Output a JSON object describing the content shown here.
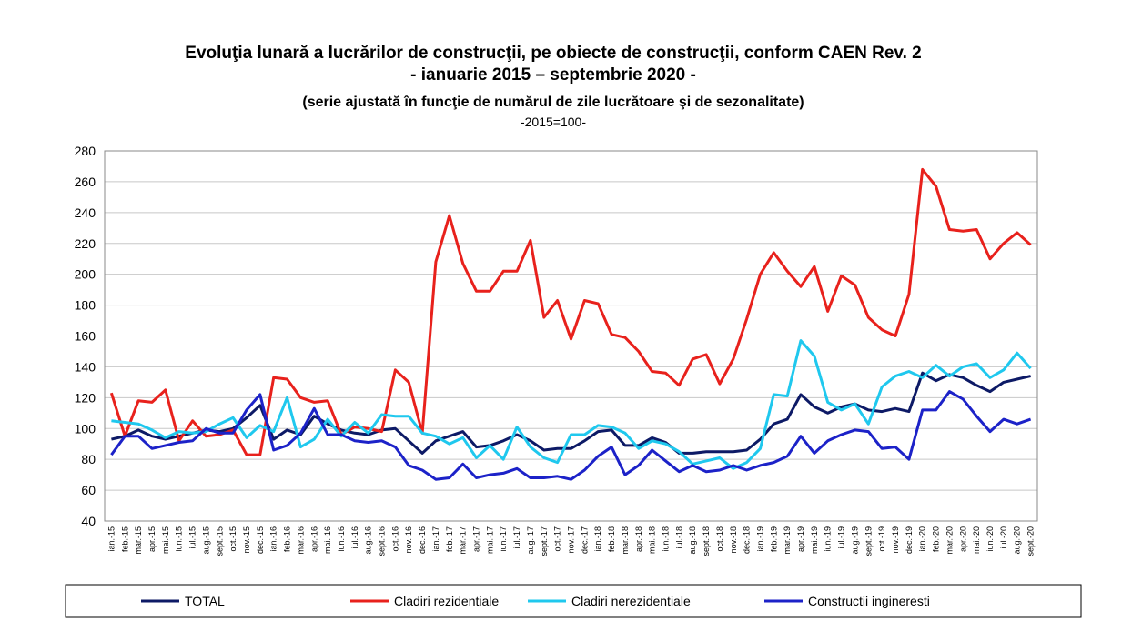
{
  "chart_data": {
    "type": "line",
    "title": "Evoluţia lunară a lucrărilor de construcţii, pe obiecte de construcţii, conform CAEN Rev. 2",
    "subtitle": "- ianuarie 2015 – septembrie 2020 -",
    "note": "(serie ajustată în funcţie de numărul de zile lucrătoare şi de sezonalitate)",
    "base": "-2015=100-",
    "categories": [
      "ian.-15",
      "feb.-15",
      "mar.-15",
      "apr.-15",
      "mai.-15",
      "iun.-15",
      "iul.-15",
      "aug.-15",
      "sept.-15",
      "oct.-15",
      "nov.-15",
      "dec.-15",
      "ian.-16",
      "feb.-16",
      "mar.-16",
      "apr.-16",
      "mai.-16",
      "iun.-16",
      "iul.-16",
      "aug.-16",
      "sept.-16",
      "oct.-16",
      "nov.-16",
      "dec.-16",
      "ian.-17",
      "feb.-17",
      "mar.-17",
      "apr.-17",
      "mai.-17",
      "iun.-17",
      "iul.-17",
      "aug.-17",
      "sept.-17",
      "oct.-17",
      "nov.-17",
      "dec.-17",
      "ian.-18",
      "feb.-18",
      "mar.-18",
      "apr.-18",
      "mai.-18",
      "iun.-18",
      "iul.-18",
      "aug.-18",
      "sept.-18",
      "oct.-18",
      "nov.-18",
      "dec.-18",
      "ian.-19",
      "feb.-19",
      "mar.-19",
      "apr.-19",
      "mai.-19",
      "iun.-19",
      "iul.-19",
      "aug.-19",
      "sept.-19",
      "oct.-19",
      "nov.-19",
      "dec.-19",
      "ian.-20",
      "feb.-20",
      "mar.-20",
      "apr.-20",
      "mai.-20",
      "iun.-20",
      "iul.-20",
      "aug.-20",
      "sept.-20"
    ],
    "series": [
      {
        "name": "TOTAL",
        "color": "#0d1a66",
        "values": [
          93,
          95,
          99,
          95,
          93,
          95,
          97,
          99,
          98,
          100,
          107,
          115,
          93,
          99,
          96,
          108,
          103,
          99,
          97,
          96,
          99,
          100,
          92,
          84,
          92,
          95,
          98,
          88,
          89,
          92,
          96,
          92,
          86,
          87,
          87,
          92,
          98,
          99,
          89,
          89,
          94,
          91,
          84,
          84,
          85,
          85,
          85,
          86,
          93,
          103,
          106,
          122,
          114,
          110,
          114,
          116,
          112,
          111,
          113,
          111,
          136,
          131,
          135,
          133,
          128,
          124,
          130,
          132,
          134
        ]
      },
      {
        "name": "Cladiri rezidentiale",
        "color": "#e8211c",
        "values": [
          123,
          95,
          118,
          117,
          125,
          92,
          105,
          95,
          96,
          99,
          83,
          83,
          133,
          132,
          120,
          117,
          118,
          96,
          101,
          100,
          98,
          138,
          130,
          97,
          208,
          238,
          207,
          189,
          189,
          202,
          202,
          222,
          172,
          183,
          158,
          183,
          181,
          161,
          159,
          150,
          137,
          136,
          128,
          145,
          148,
          129,
          145,
          171,
          200,
          214,
          202,
          192,
          205,
          176,
          199,
          193,
          172,
          164,
          160,
          187,
          268,
          257,
          229,
          228,
          229,
          210,
          220,
          227,
          219
        ]
      },
      {
        "name": "Cladiri nerezidentiale",
        "color": "#1fc8ee",
        "values": [
          105,
          104,
          103,
          99,
          94,
          98,
          97,
          98,
          103,
          107,
          94,
          102,
          98,
          120,
          88,
          93,
          106,
          95,
          104,
          97,
          109,
          108,
          108,
          97,
          95,
          90,
          94,
          81,
          89,
          80,
          101,
          88,
          81,
          78,
          96,
          96,
          102,
          101,
          97,
          87,
          92,
          90,
          85,
          77,
          79,
          81,
          74,
          78,
          87,
          122,
          121,
          157,
          147,
          117,
          112,
          116,
          103,
          127,
          134,
          137,
          133,
          141,
          134,
          140,
          142,
          133,
          138,
          149,
          139
        ]
      },
      {
        "name": "Constructii ingineresti",
        "color": "#1c22c8",
        "values": [
          83,
          95,
          95,
          87,
          89,
          91,
          92,
          100,
          97,
          97,
          112,
          122,
          86,
          89,
          97,
          113,
          96,
          96,
          92,
          91,
          92,
          88,
          76,
          73,
          67,
          68,
          77,
          68,
          70,
          71,
          74,
          68,
          68,
          69,
          67,
          73,
          82,
          88,
          70,
          76,
          86,
          79,
          72,
          76,
          72,
          73,
          76,
          73,
          76,
          78,
          82,
          95,
          84,
          92,
          96,
          99,
          98,
          87,
          88,
          80,
          112,
          112,
          124,
          119,
          108,
          98,
          106,
          103,
          106
        ]
      }
    ],
    "ylim": [
      40,
      280
    ],
    "yticks": [
      40,
      60,
      80,
      100,
      120,
      140,
      160,
      180,
      200,
      220,
      240,
      260,
      280
    ],
    "grid": true,
    "legend": "bottom"
  }
}
